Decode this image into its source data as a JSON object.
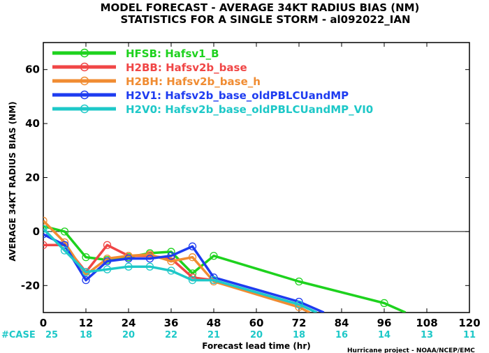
{
  "chart_data": {
    "type": "line",
    "title": "MODEL FORECAST - AVERAGE 34KT RADIUS BIAS (NM)",
    "subtitle": "STATISTICS FOR A SINGLE STORM - al092022_IAN",
    "xlabel": "Forecast lead time (hr)",
    "ylabel": "AVERAGE 34KT RADIUS BIAS (NM)",
    "xlim": [
      0,
      120
    ],
    "ylim": [
      -30,
      70
    ],
    "x_ticks": [
      0,
      12,
      24,
      36,
      48,
      60,
      72,
      84,
      96,
      108,
      120
    ],
    "y_ticks": [
      -20,
      0,
      20,
      40,
      60
    ],
    "zero_line": true,
    "legend_position": "top-left",
    "case_prefix": "#CASE",
    "cases": [
      25,
      18,
      20,
      22,
      21,
      20,
      18,
      16,
      14,
      13,
      11
    ],
    "credit": "Hurricane project - NOAA/NCEP/EMC",
    "series": [
      {
        "code": "HFSB",
        "name": "Hafsv1_B",
        "color": "#1ed21e",
        "x": [
          0,
          6,
          12,
          18,
          24,
          30,
          36,
          42,
          48,
          72,
          96,
          102
        ],
        "y": [
          2,
          0,
          -9.5,
          -10.5,
          -9.5,
          -8,
          -7.5,
          -15.5,
          -9,
          -18.5,
          -26.5,
          -30
        ]
      },
      {
        "code": "H2BB",
        "name": "Hafsv2b_base",
        "color": "#f04646",
        "x": [
          0,
          6,
          12,
          18,
          24,
          30,
          36,
          42,
          48
        ],
        "y": [
          -5,
          -5,
          -15,
          -5,
          -9,
          -9,
          -10,
          -17,
          -18
        ]
      },
      {
        "code": "H2BH",
        "name": "Hafsv2b_base_h",
        "color": "#f08c32",
        "x": [
          0,
          6,
          12,
          18,
          24,
          30,
          36,
          42,
          48,
          72,
          75
        ],
        "y": [
          4,
          -4,
          -16,
          -10,
          -9,
          -8.5,
          -11,
          -9.5,
          -18.5,
          -28,
          -30
        ]
      },
      {
        "code": "H2V1",
        "name": "Hafsv2b_base_oldPBLCUandMP",
        "color": "#1e3cf0",
        "x": [
          0,
          6,
          12,
          18,
          24,
          30,
          36,
          42,
          48,
          72,
          79
        ],
        "y": [
          -1,
          -5,
          -18,
          -11,
          -10,
          -10,
          -9,
          -5.5,
          -17,
          -26,
          -30
        ]
      },
      {
        "code": "H2V0",
        "name": "Hafsv2b_base_oldPBLCUandMP_VI0",
        "color": "#1ec8c8",
        "x": [
          0,
          6,
          12,
          18,
          24,
          30,
          36,
          42,
          48,
          72,
          77
        ],
        "y": [
          1,
          -7,
          -15,
          -14,
          -13,
          -13,
          -14.5,
          -18,
          -18,
          -27,
          -30
        ]
      }
    ]
  }
}
